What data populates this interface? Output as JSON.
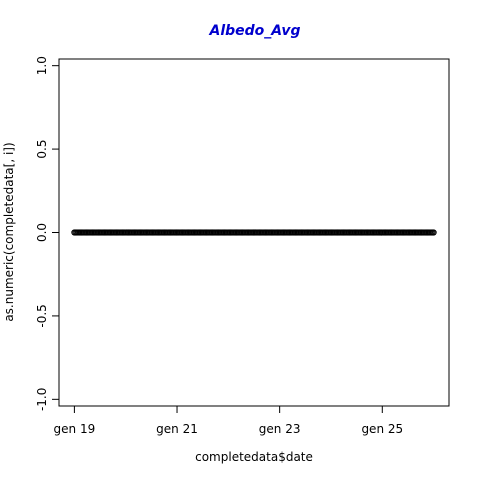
{
  "colors": {
    "title": "#0000CD",
    "axis": "#000000",
    "points": "#000000",
    "background": "#ffffff"
  },
  "chart_data": {
    "type": "scatter",
    "title": "Albedo_Avg",
    "xlabel": "completedata$date",
    "ylabel": "as.numeric(completedata[, i])",
    "x_unit": "days since gen 19",
    "xlim": [
      -0.3,
      7.3
    ],
    "ylim": [
      -1.04,
      1.04
    ],
    "x_ticks": [
      {
        "value": 0,
        "label": "gen 19"
      },
      {
        "value": 2,
        "label": "gen 21"
      },
      {
        "value": 4,
        "label": "gen 23"
      },
      {
        "value": 6,
        "label": "gen 25"
      }
    ],
    "y_ticks": [
      {
        "value": -1.0,
        "label": "-1.0"
      },
      {
        "value": -0.5,
        "label": "-0.5"
      },
      {
        "value": 0.0,
        "label": "0.0"
      },
      {
        "value": 0.5,
        "label": "0.5"
      },
      {
        "value": 1.0,
        "label": "1.0"
      }
    ],
    "series": [
      {
        "x_start": 0,
        "x_end": 7,
        "n_points": 300,
        "y": 0
      }
    ],
    "grid": false,
    "legend": "none"
  }
}
